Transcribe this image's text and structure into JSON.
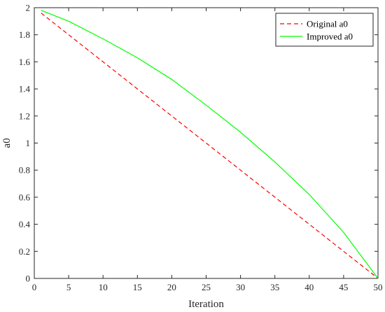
{
  "chart_data": {
    "type": "line",
    "title": "",
    "xlabel": "Iteration",
    "ylabel": "a0",
    "xlim": [
      0,
      50
    ],
    "ylim": [
      0,
      2
    ],
    "xticks": [
      0,
      5,
      10,
      15,
      20,
      25,
      30,
      35,
      40,
      45,
      50
    ],
    "yticks": [
      0,
      0.2,
      0.4,
      0.6,
      0.8,
      1,
      1.2,
      1.4,
      1.6,
      1.8,
      2
    ],
    "grid": false,
    "legend_position": "top-right",
    "x": [
      1,
      5,
      10,
      15,
      20,
      25,
      30,
      35,
      40,
      45,
      50
    ],
    "series": [
      {
        "name": "Original a0",
        "color": "#ff0000",
        "style": "dashed",
        "values": [
          1.96,
          1.8,
          1.6,
          1.4,
          1.2,
          1.0,
          0.8,
          0.6,
          0.4,
          0.2,
          0.0
        ]
      },
      {
        "name": "Improved a0",
        "color": "#00ff00",
        "style": "solid",
        "values": [
          1.98,
          1.9,
          1.77,
          1.63,
          1.47,
          1.28,
          1.08,
          0.86,
          0.62,
          0.34,
          0.0
        ]
      }
    ]
  }
}
